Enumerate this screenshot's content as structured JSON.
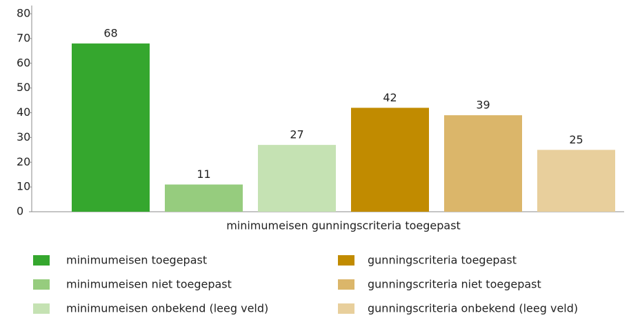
{
  "chart_data": {
    "type": "bar",
    "categories": [
      "minimumeisen gunningscriteria toegepast"
    ],
    "series": [
      {
        "name": "minimumeisen toegepast",
        "color": "#35a72e",
        "values": [
          68
        ]
      },
      {
        "name": "minimumeisen niet toegepast",
        "color": "#96cc7e",
        "values": [
          11
        ]
      },
      {
        "name": "minimumeisen onbekend (leeg veld)",
        "color": "#c5e2b3",
        "values": [
          27
        ]
      },
      {
        "name": "gunningscriteria toegepast",
        "color": "#c18b00",
        "values": [
          42
        ]
      },
      {
        "name": "gunningscriteria niet toegepast",
        "color": "#dbb66a",
        "values": [
          39
        ]
      },
      {
        "name": "gunningscriteria onbekend (leeg veld)",
        "color": "#e8cf9c",
        "values": [
          25
        ]
      }
    ],
    "ylim": [
      0,
      80
    ],
    "yticks": [
      0,
      10,
      20,
      30,
      40,
      50,
      60,
      70,
      80
    ]
  }
}
